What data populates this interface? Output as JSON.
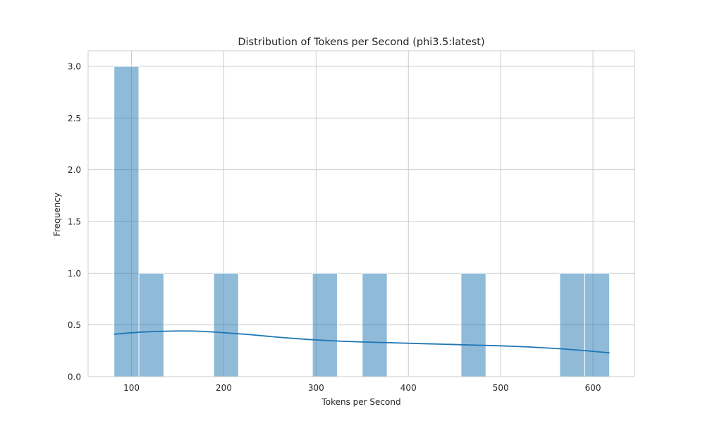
{
  "chart_data": {
    "type": "bar",
    "subtype": "histogram with kde",
    "title": "Distribution of Tokens per Second (phi3.5:latest)",
    "xlabel": "Tokens per Second",
    "ylabel": "Frequency",
    "xlim": [
      53,
      645
    ],
    "ylim": [
      0,
      3.15
    ],
    "xticks": [
      100,
      200,
      300,
      400,
      500,
      600
    ],
    "yticks": [
      "0.0",
      "0.5",
      "1.0",
      "1.5",
      "2.0",
      "2.5",
      "3.0"
    ],
    "grid": true,
    "bins": [
      {
        "x0": 81,
        "x1": 108,
        "count": 3
      },
      {
        "x0": 108,
        "x1": 135,
        "count": 1
      },
      {
        "x0": 189,
        "x1": 216,
        "count": 1
      },
      {
        "x0": 296,
        "x1": 323,
        "count": 1
      },
      {
        "x0": 350,
        "x1": 377,
        "count": 1
      },
      {
        "x0": 457,
        "x1": 484,
        "count": 1
      },
      {
        "x0": 564,
        "x1": 591,
        "count": 1
      },
      {
        "x0": 591,
        "x1": 618,
        "count": 1
      }
    ],
    "kde": {
      "x": [
        81,
        110,
        140,
        170,
        200,
        230,
        260,
        290,
        320,
        350,
        380,
        410,
        440,
        470,
        500,
        530,
        560,
        590,
        618
      ],
      "y": [
        0.41,
        0.43,
        0.44,
        0.44,
        0.425,
        0.405,
        0.38,
        0.36,
        0.345,
        0.335,
        0.328,
        0.32,
        0.313,
        0.305,
        0.298,
        0.287,
        0.272,
        0.252,
        0.23
      ]
    },
    "colors": {
      "bar_fill": "#1f77b4",
      "bar_opacity": 0.5,
      "kde_line": "#1f77b4",
      "grid": "#cccccc",
      "axes_edge": "#cccccc"
    }
  }
}
